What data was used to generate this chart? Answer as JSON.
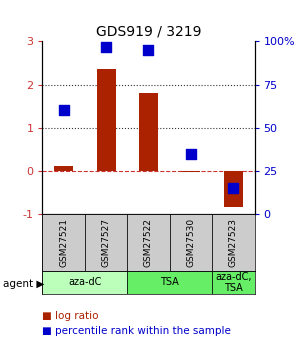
{
  "title": "GDS919 / 3219",
  "samples": [
    "GSM27521",
    "GSM27527",
    "GSM27522",
    "GSM27530",
    "GSM27523"
  ],
  "log_ratios": [
    0.1,
    2.35,
    1.8,
    -0.02,
    -0.85
  ],
  "percentile_ranks": [
    0.6,
    0.97,
    0.95,
    0.35,
    0.15
  ],
  "agents": [
    {
      "label": "aza-dC",
      "span": [
        0,
        2
      ],
      "color": "#bbffbb"
    },
    {
      "label": "TSA",
      "span": [
        2,
        4
      ],
      "color": "#66ee66"
    },
    {
      "label": "aza-dC,\nTSA",
      "span": [
        4,
        5
      ],
      "color": "#66ee66"
    }
  ],
  "agent_colors": [
    "#bbffbb",
    "#66ee66",
    "#66ee66"
  ],
  "bar_color": "#aa2200",
  "dot_color": "#0000cc",
  "ylim_left": [
    -1,
    3
  ],
  "ylim_right": [
    0,
    100
  ],
  "left_ticks": [
    -1,
    0,
    1,
    2,
    3
  ],
  "right_ticks": [
    0,
    25,
    50,
    75,
    100
  ],
  "right_tick_labels": [
    "0",
    "25",
    "50",
    "75",
    "100%"
  ],
  "hlines": [
    0,
    1,
    2
  ],
  "hline_styles": [
    "--",
    ":",
    ":"
  ],
  "hline_colors": [
    "#cc3333",
    "#333333",
    "#333333"
  ],
  "bg_color": "#ffffff"
}
